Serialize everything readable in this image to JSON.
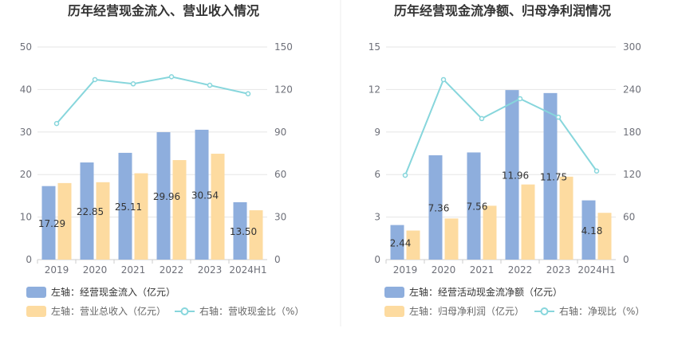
{
  "chart_data": [
    {
      "type": "bar",
      "title": "历年经营现金流入、营业收入情况",
      "categories": [
        "2019",
        "2020",
        "2021",
        "2022",
        "2023",
        "2024H1"
      ],
      "left_axis": {
        "ticks": [
          "0",
          "10",
          "20",
          "30",
          "40",
          "50"
        ],
        "ylim": [
          0,
          50
        ]
      },
      "right_axis": {
        "ticks": [
          "0",
          "30",
          "60",
          "90",
          "120",
          "150"
        ],
        "ylim": [
          0,
          150
        ]
      },
      "series": [
        {
          "name": "左轴：经营现金流入（亿元）",
          "type": "bar",
          "axis": "left",
          "color": "#8eaedd",
          "values": [
            17.29,
            22.85,
            25.11,
            29.96,
            30.54,
            13.5
          ],
          "labels": [
            "17.29",
            "22.85",
            "25.11",
            "29.96",
            "30.54",
            "13.50"
          ]
        },
        {
          "name": "左轴：营业总收入（亿元）",
          "type": "bar",
          "axis": "left",
          "color": "#fddba0",
          "values": [
            18.0,
            18.2,
            20.3,
            23.4,
            24.9,
            11.6
          ]
        },
        {
          "name": "右轴：营收现金比（%）",
          "type": "line",
          "axis": "right",
          "color": "#87d6dc",
          "values": [
            96,
            127,
            124,
            129,
            123,
            117
          ]
        }
      ]
    },
    {
      "type": "bar",
      "title": "历年经营现金流净额、归母净利润情况",
      "categories": [
        "2019",
        "2020",
        "2021",
        "2022",
        "2023",
        "2024H1"
      ],
      "left_axis": {
        "ticks": [
          "0",
          "3",
          "6",
          "9",
          "12",
          "15"
        ],
        "ylim": [
          0,
          15
        ]
      },
      "right_axis": {
        "ticks": [
          "0",
          "60",
          "120",
          "180",
          "240",
          "300"
        ],
        "ylim": [
          0,
          300
        ]
      },
      "series": [
        {
          "name": "左轴：经营活动现金流净额（亿元）",
          "type": "bar",
          "axis": "left",
          "color": "#8eaedd",
          "values": [
            2.44,
            7.36,
            7.56,
            11.96,
            11.75,
            4.18
          ],
          "labels": [
            "2.44",
            "7.36",
            "7.56",
            "11.96",
            "11.75",
            "4.18"
          ]
        },
        {
          "name": "左轴：归母净利润（亿元）",
          "type": "bar",
          "axis": "left",
          "color": "#fddba0",
          "values": [
            2.05,
            2.9,
            3.8,
            5.3,
            5.85,
            3.3
          ]
        },
        {
          "name": "右轴：净现比（%）",
          "type": "line",
          "axis": "right",
          "color": "#87d6dc",
          "values": [
            119,
            254,
            199,
            227,
            201,
            125
          ]
        }
      ]
    }
  ]
}
